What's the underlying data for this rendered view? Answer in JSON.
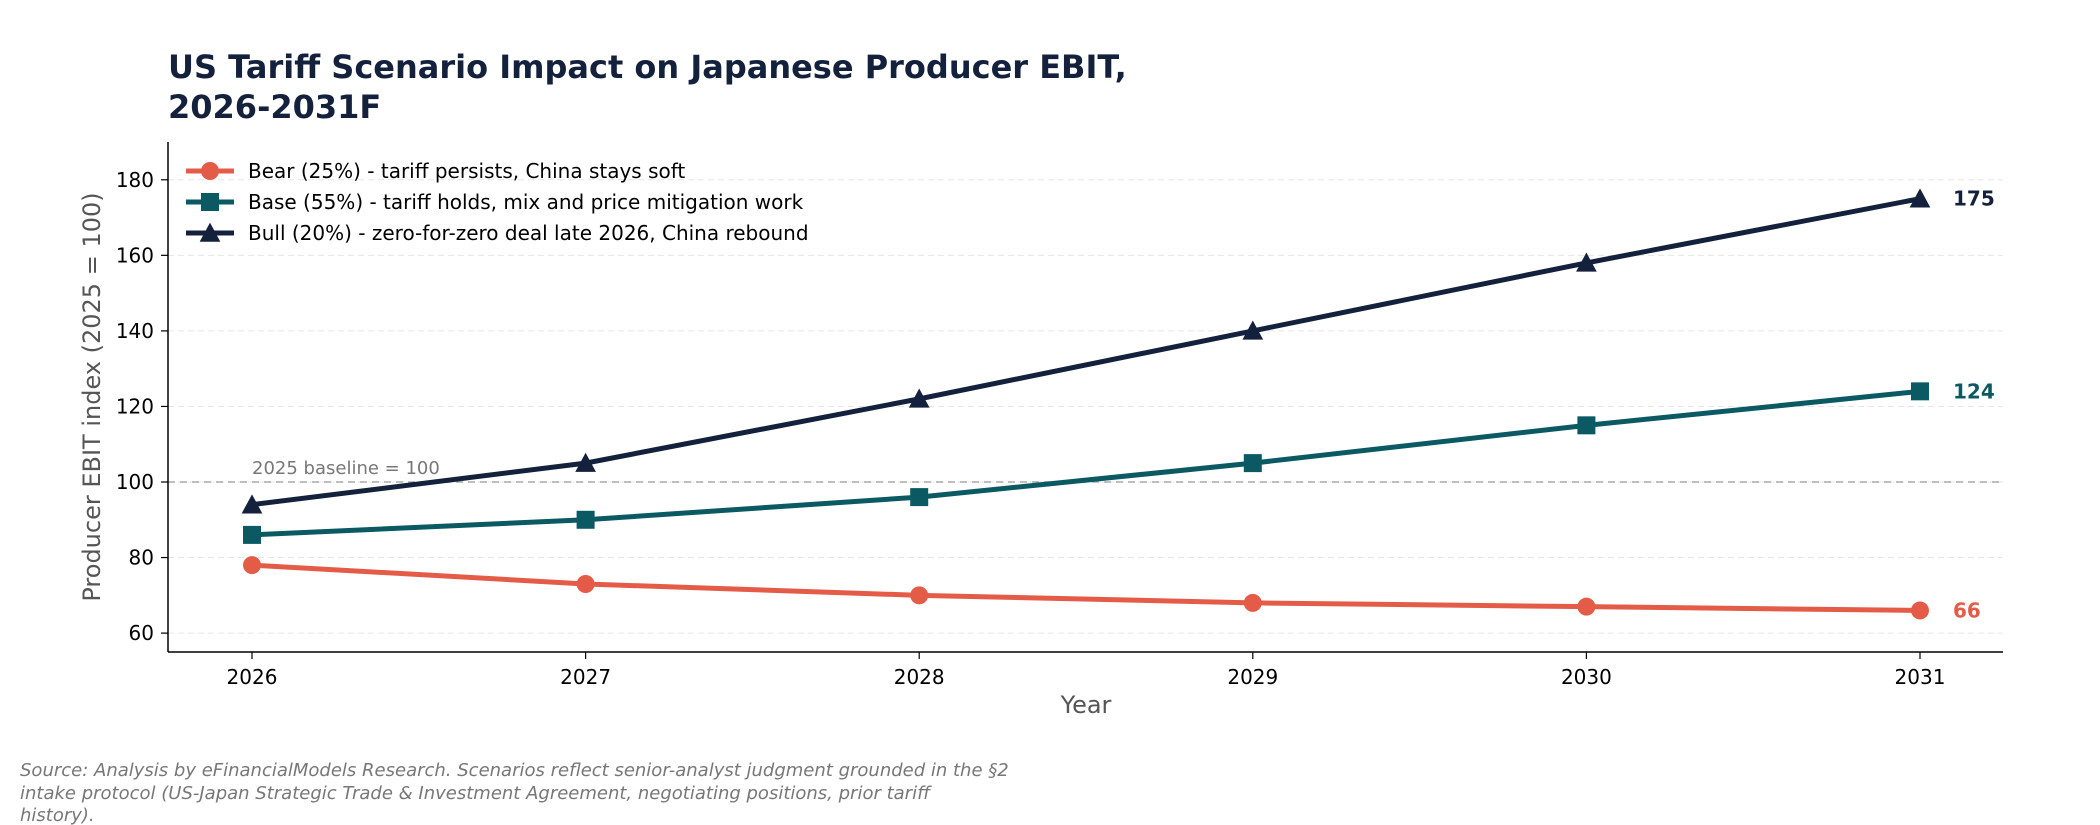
{
  "chart_data": {
    "type": "line",
    "title_lines": [
      "US Tariff Scenario Impact on Japanese Producer EBIT,",
      "2026-2031F"
    ],
    "xlabel": "Year",
    "ylabel": "Producer EBIT index (2025 = 100)",
    "x": [
      "2026",
      "2027",
      "2028",
      "2029",
      "2030",
      "2031"
    ],
    "ylim": [
      55,
      190
    ],
    "yticks": [
      60,
      80,
      100,
      120,
      140,
      160,
      180
    ],
    "grid": "horizontal",
    "legend_placement": "top-left",
    "series": [
      {
        "name": "Bear (25%) - tariff persists, China stays soft",
        "color": "#e45c48",
        "marker": "circle",
        "values": [
          78,
          73,
          70,
          68,
          67,
          66
        ],
        "end_label": "66"
      },
      {
        "name": "Base (55%) - tariff holds, mix and price mitigation work",
        "color": "#0b5a63",
        "marker": "square",
        "values": [
          86,
          90,
          96,
          105,
          115,
          124
        ],
        "end_label": "124"
      },
      {
        "name": "Bull (20%) - zero-for-zero deal late 2026, China rebound",
        "color": "#14213d",
        "marker": "triangle",
        "values": [
          94,
          105,
          122,
          140,
          158,
          175
        ],
        "end_label": "175"
      }
    ],
    "reference_line": {
      "value": 100,
      "label": "2025 baseline = 100"
    }
  },
  "source_lines": [
    "Source: Analysis by eFinancialModels Research. Scenarios reflect senior-analyst judgment grounded in the §2",
    "intake protocol (US-Japan Strategic Trade & Investment Agreement, negotiating positions, prior tariff",
    "history)."
  ]
}
